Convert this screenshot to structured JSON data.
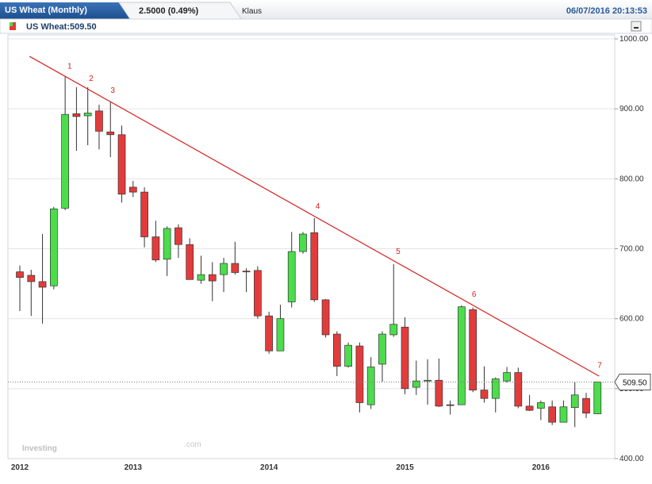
{
  "header": {
    "tab": "US Wheat (Monthly)",
    "change": "2.5000 (0.49%)",
    "user": "Klaus",
    "timestamp": "06/07/2016 20:13:53"
  },
  "legend": {
    "label": "US Wheat:509.50"
  },
  "watermark": {
    "brand": "Investing",
    "suffix": ".com"
  },
  "chart_data": {
    "type": "candlestick",
    "title": "US Wheat (Monthly)",
    "categories": [
      "2012",
      null,
      null,
      null,
      null,
      null,
      null,
      null,
      null,
      null,
      "2013",
      null,
      null,
      null,
      null,
      null,
      null,
      null,
      null,
      null,
      null,
      null,
      "2014",
      null,
      null,
      null,
      null,
      null,
      null,
      null,
      null,
      null,
      null,
      null,
      "2015",
      null,
      null,
      null,
      null,
      null,
      null,
      null,
      null,
      null,
      null,
      null,
      "2016",
      null,
      null,
      null,
      null,
      null
    ],
    "open": [
      667,
      662,
      653,
      647,
      758,
      893,
      890,
      897,
      867,
      863,
      788,
      781,
      717,
      685,
      730,
      706,
      655,
      663,
      663,
      679,
      668,
      669,
      604,
      554,
      624,
      696,
      723,
      627,
      578,
      532,
      561,
      477,
      535,
      577,
      588,
      502,
      511,
      512,
      477,
      477,
      613,
      498,
      486,
      511,
      523,
      475,
      472,
      474,
      452,
      473,
      486,
      464
    ],
    "high": [
      676,
      670,
      721,
      760,
      946,
      931,
      931,
      906,
      910,
      876,
      797,
      788,
      740,
      732,
      735,
      715,
      690,
      681,
      687,
      710,
      672,
      675,
      610,
      620,
      724,
      724,
      744,
      628,
      582,
      566,
      566,
      545,
      582,
      678,
      602,
      540,
      542,
      543,
      483,
      619,
      616,
      532,
      516,
      531,
      530,
      491,
      483,
      483,
      483,
      509,
      494,
      509.5
    ],
    "low": [
      611,
      604,
      593,
      642,
      755,
      840,
      848,
      842,
      831,
      766,
      774,
      702,
      681,
      661,
      687,
      656,
      650,
      625,
      638,
      663,
      638,
      600,
      550,
      554,
      616,
      693,
      624,
      573,
      518,
      530,
      466,
      471,
      510,
      574,
      492,
      491,
      477,
      474,
      463,
      477,
      495,
      480,
      466,
      509,
      472,
      468,
      455,
      448,
      452,
      445,
      458,
      464
    ],
    "close": [
      659,
      653,
      645,
      757,
      892,
      889,
      894,
      868,
      863,
      778,
      781,
      717,
      684,
      729,
      706,
      656,
      663,
      654,
      679,
      666,
      667,
      604,
      554,
      600,
      696,
      721,
      627,
      577,
      532,
      562,
      480,
      531,
      578,
      592,
      500,
      511,
      512,
      475,
      476,
      617,
      498,
      486,
      514,
      523,
      475,
      469,
      480,
      452,
      474,
      491,
      465,
      509.5
    ],
    "up_color": "#4cdc4c",
    "down_color": "#e33b3b",
    "ylim": [
      400,
      1000
    ],
    "yticks": [
      {
        "value": 400,
        "label": "400.00"
      },
      {
        "value": 500,
        "label": "500.00"
      },
      {
        "value": 600,
        "label": "600.00"
      },
      {
        "value": 700,
        "label": "700.00"
      },
      {
        "value": 800,
        "label": "800.00"
      },
      {
        "value": 900,
        "label": "900.00"
      },
      {
        "value": 1000,
        "label": "1000.00"
      }
    ],
    "last_price": {
      "value": 509.5,
      "label": "509.50"
    },
    "grid": true,
    "trendline": {
      "x": [
        1,
        51
      ],
      "y": [
        975,
        518
      ],
      "color": "#d42020"
    },
    "annotations": [
      {
        "text": "1",
        "x": 4.4
      },
      {
        "text": "2",
        "x": 6.3
      },
      {
        "text": "3",
        "x": 8.2
      },
      {
        "text": "4",
        "x": 26.3
      },
      {
        "text": "5",
        "x": 33.4
      },
      {
        "text": "6",
        "x": 40.1
      },
      {
        "text": "7",
        "x": 51.2
      }
    ]
  }
}
